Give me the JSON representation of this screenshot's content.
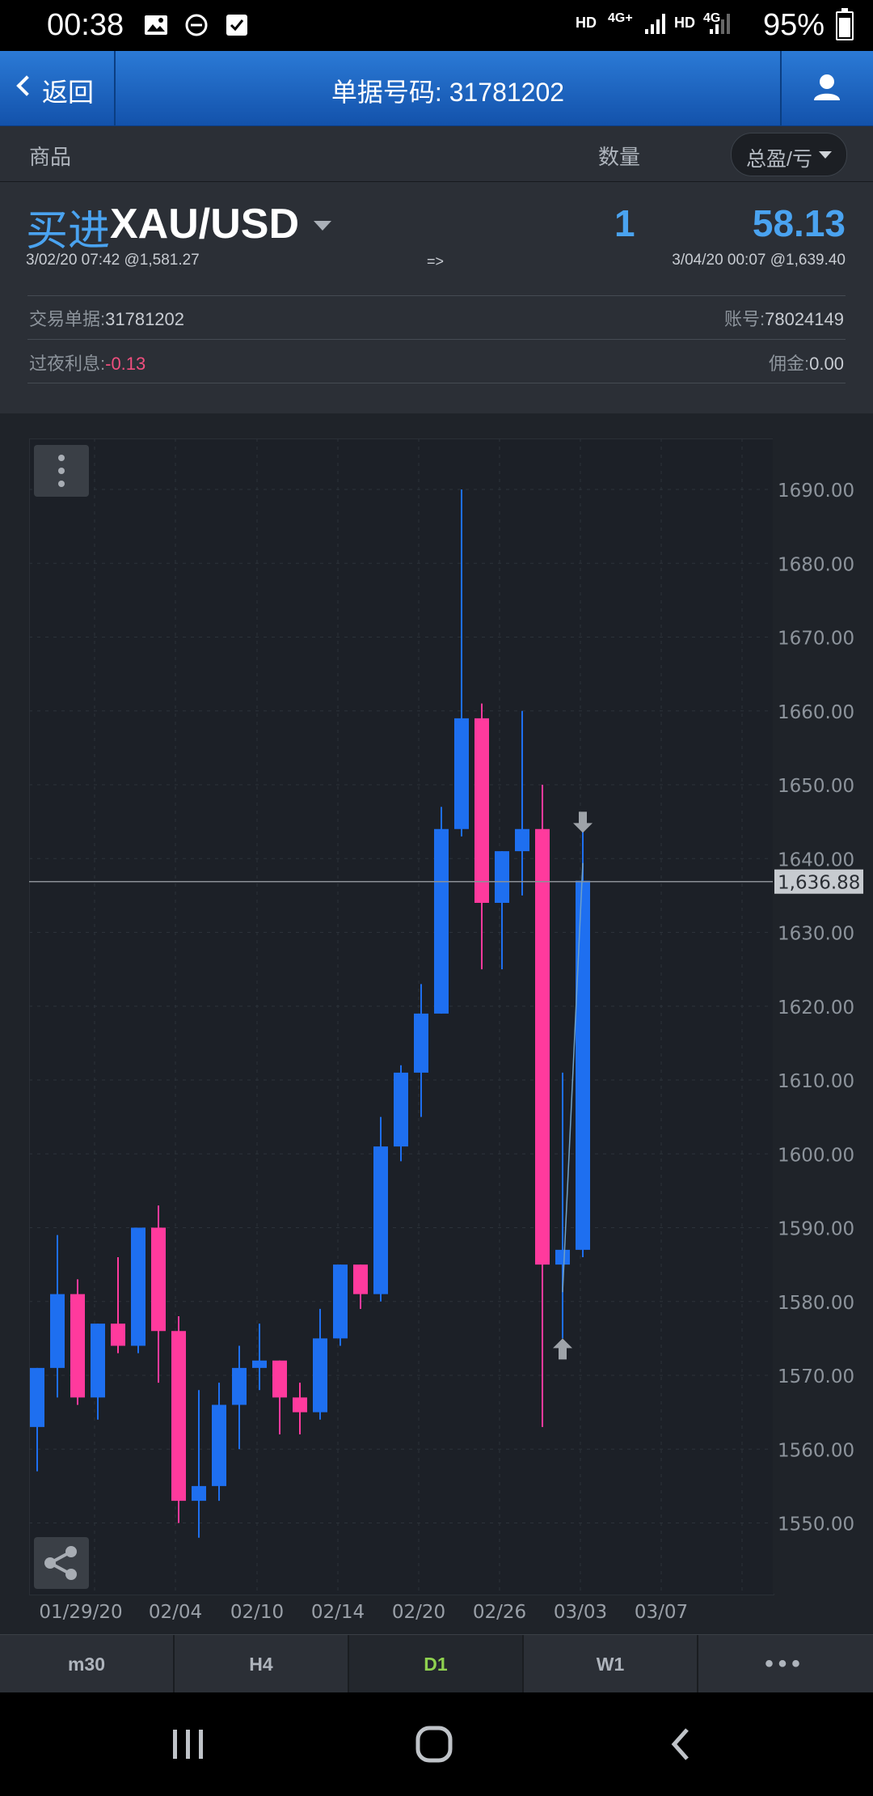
{
  "status": {
    "time": "00:38",
    "hd1": "HD",
    "net1": "4G+",
    "hd2": "HD",
    "net2": "4G",
    "battery": "95%"
  },
  "topbar": {
    "back_label": "返回",
    "title": "单据号码: 31781202"
  },
  "columns": {
    "product": "商品",
    "quantity": "数量",
    "pl_select": "总盈/亏"
  },
  "position": {
    "side": "买进",
    "symbol": "XAU/USD",
    "quantity": "1",
    "profit": "58.13",
    "open": "3/02/20 07:42 @1,581.27",
    "arrow": "=>",
    "close": "3/04/20 00:07 @1,639.40",
    "order_label": "交易单据:",
    "order_value": "31781202",
    "account_label": "账号:",
    "account_value": "78024149",
    "swap_label": "过夜利息:",
    "swap_value": "-0.13",
    "commission_label": "佣金:",
    "commission_value": "0.00"
  },
  "chart_data": {
    "type": "candlestick",
    "price_ticks": [
      "1690.00",
      "1680.00",
      "1670.00",
      "1660.00",
      "1650.00",
      "1640.00",
      "1630.00",
      "1620.00",
      "1610.00",
      "1600.00",
      "1590.00",
      "1580.00",
      "1570.00",
      "1560.00",
      "1550.00"
    ],
    "date_labels": [
      "01/29/20",
      "02/04",
      "02/10",
      "02/14",
      "02/20",
      "02/26",
      "03/03",
      "03/07"
    ],
    "current_price": "1,636.88",
    "colors": {
      "up": "#1e6ff0",
      "down": "#ff3a9d",
      "grid": "#2c323a",
      "text": "#8d949c"
    },
    "candles": [
      {
        "o": 1563,
        "h": 1571,
        "l": 1557,
        "c": 1571
      },
      {
        "o": 1571,
        "h": 1589,
        "l": 1567,
        "c": 1581
      },
      {
        "o": 1581,
        "h": 1583,
        "l": 1566,
        "c": 1567
      },
      {
        "o": 1567,
        "h": 1577,
        "l": 1564,
        "c": 1577
      },
      {
        "o": 1577,
        "h": 1586,
        "l": 1573,
        "c": 1574
      },
      {
        "o": 1574,
        "h": 1590,
        "l": 1573,
        "c": 1590
      },
      {
        "o": 1590,
        "h": 1593,
        "l": 1569,
        "c": 1576
      },
      {
        "o": 1576,
        "h": 1578,
        "l": 1550,
        "c": 1553
      },
      {
        "o": 1553,
        "h": 1568,
        "l": 1548,
        "c": 1555
      },
      {
        "o": 1555,
        "h": 1569,
        "l": 1553,
        "c": 1566
      },
      {
        "o": 1566,
        "h": 1574,
        "l": 1560,
        "c": 1571
      },
      {
        "o": 1571,
        "h": 1577,
        "l": 1568,
        "c": 1572
      },
      {
        "o": 1572,
        "h": 1572,
        "l": 1562,
        "c": 1567
      },
      {
        "o": 1567,
        "h": 1569,
        "l": 1562,
        "c": 1565
      },
      {
        "o": 1565,
        "h": 1579,
        "l": 1564,
        "c": 1575
      },
      {
        "o": 1575,
        "h": 1585,
        "l": 1574,
        "c": 1585
      },
      {
        "o": 1585,
        "h": 1585,
        "l": 1579,
        "c": 1581
      },
      {
        "o": 1581,
        "h": 1605,
        "l": 1580,
        "c": 1601
      },
      {
        "o": 1601,
        "h": 1612,
        "l": 1599,
        "c": 1611
      },
      {
        "o": 1611,
        "h": 1623,
        "l": 1605,
        "c": 1619
      },
      {
        "o": 1619,
        "h": 1647,
        "l": 1619,
        "c": 1644
      },
      {
        "o": 1644,
        "h": 1690,
        "l": 1643,
        "c": 1659
      },
      {
        "o": 1659,
        "h": 1661,
        "l": 1625,
        "c": 1634
      },
      {
        "o": 1634,
        "h": 1641,
        "l": 1625,
        "c": 1641
      },
      {
        "o": 1641,
        "h": 1660,
        "l": 1635,
        "c": 1644
      },
      {
        "o": 1644,
        "h": 1650,
        "l": 1563,
        "c": 1585
      },
      {
        "o": 1585,
        "h": 1611,
        "l": 1575,
        "c": 1587
      },
      {
        "o": 1587,
        "h": 1644,
        "l": 1586,
        "c": 1637
      }
    ]
  },
  "timeframes": {
    "m30": "m30",
    "h4": "H4",
    "d1": "D1",
    "w1": "W1",
    "more": "•••"
  }
}
